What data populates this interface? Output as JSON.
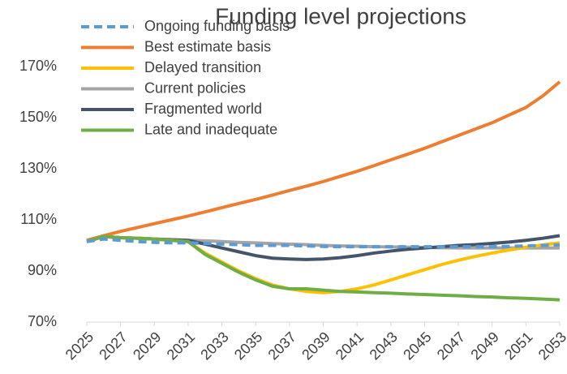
{
  "chart_data": {
    "type": "line",
    "title": "Funding level projections",
    "x": [
      2025,
      2026,
      2027,
      2028,
      2029,
      2030,
      2031,
      2032,
      2033,
      2034,
      2035,
      2036,
      2037,
      2038,
      2039,
      2040,
      2041,
      2042,
      2043,
      2044,
      2045,
      2046,
      2047,
      2048,
      2049,
      2050,
      2051,
      2052,
      2053
    ],
    "xlim": [
      2025,
      2053
    ],
    "xticks": [
      2025,
      2027,
      2029,
      2031,
      2033,
      2035,
      2037,
      2039,
      2041,
      2043,
      2045,
      2047,
      2049,
      2051,
      2053
    ],
    "ylim": [
      70,
      170
    ],
    "yticks": [
      {
        "value": 70,
        "label": "70%"
      },
      {
        "value": 90,
        "label": "90%"
      },
      {
        "value": 110,
        "label": "110%"
      },
      {
        "value": 130,
        "label": "130%"
      },
      {
        "value": 150,
        "label": "150%"
      },
      {
        "value": 170,
        "label": "170%"
      }
    ],
    "legend": "upper left",
    "series": [
      {
        "name": "Ongoing funding basis",
        "color": "#5b9bd5",
        "dashed": true,
        "values": [
          101.5,
          102.5,
          102,
          101.5,
          101.2,
          101,
          101,
          100.8,
          100.5,
          100.3,
          100,
          100,
          100,
          99.8,
          99.6,
          99.5,
          99.5,
          99.5,
          99.5,
          99.5,
          99.5,
          99.5,
          99.5,
          99.5,
          99.5,
          99.6,
          99.8,
          100,
          100.2
        ]
      },
      {
        "name": "Best estimate basis",
        "color": "#ed7d31",
        "values": [
          102,
          103.8,
          105.5,
          107,
          108.5,
          110,
          111.5,
          113.1,
          114.8,
          116.4,
          118,
          119.7,
          121.5,
          123.2,
          125,
          127,
          129,
          131.2,
          133.5,
          135.7,
          138,
          140.5,
          143,
          145.5,
          148,
          151,
          154,
          158.5,
          164
        ]
      },
      {
        "name": "Delayed transition",
        "color": "#ffc000",
        "values": [
          101.5,
          103.5,
          103,
          102.8,
          102.5,
          102,
          101.5,
          97,
          93.5,
          90,
          87,
          84.5,
          83,
          82,
          81.5,
          82,
          83,
          84.5,
          86.5,
          88.5,
          90.5,
          92.5,
          94.2,
          95.7,
          97,
          98.2,
          99.3,
          100.2,
          101
        ]
      },
      {
        "name": "Current policies",
        "color": "#a5a5a5",
        "values": [
          101.5,
          103.5,
          103,
          102.8,
          102.5,
          102.3,
          102,
          101.8,
          101.5,
          101.2,
          101,
          100.7,
          100.5,
          100.3,
          100,
          99.8,
          99.7,
          99.5,
          99.4,
          99.3,
          99.2,
          99.1,
          99,
          99,
          99,
          99,
          99,
          99,
          99
        ]
      },
      {
        "name": "Fragmented world",
        "color": "#44546a",
        "values": [
          101.5,
          103.5,
          103,
          102.8,
          102.5,
          102.2,
          102,
          100.5,
          99,
          97.5,
          96,
          95,
          94.7,
          94.5,
          94.7,
          95.2,
          96,
          97,
          97.8,
          98.5,
          99,
          99.5,
          100,
          100.3,
          100.8,
          101.3,
          102,
          102.8,
          103.8
        ]
      },
      {
        "name": "Late and inadequate",
        "color": "#70ad47",
        "values": [
          101.5,
          103.5,
          103,
          102.8,
          102.5,
          102,
          101.5,
          96.5,
          93,
          89.5,
          86.5,
          84,
          83,
          83,
          82.5,
          82,
          81.8,
          81.5,
          81.3,
          81,
          80.8,
          80.5,
          80.3,
          80,
          79.8,
          79.5,
          79.3,
          79,
          78.7
        ]
      }
    ]
  }
}
